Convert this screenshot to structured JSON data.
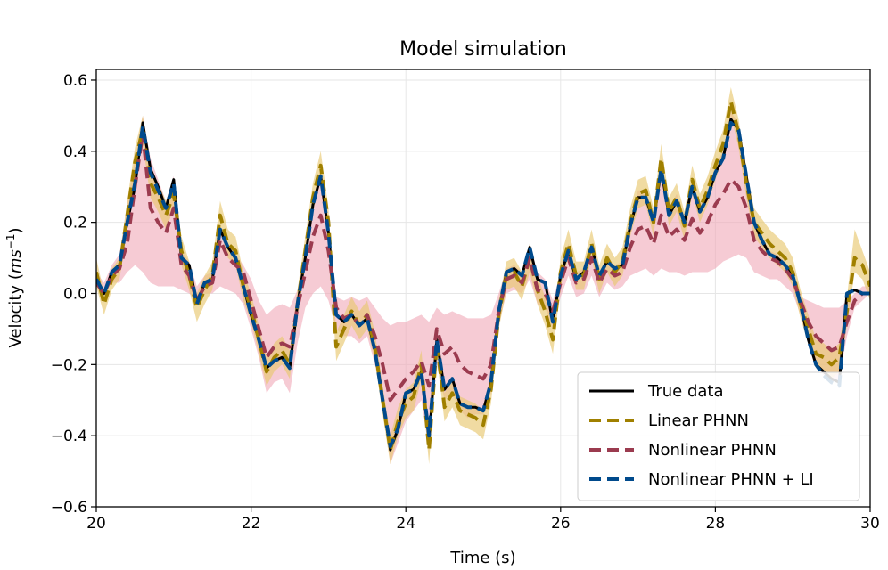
{
  "chart_data": {
    "type": "line",
    "title": "Model simulation",
    "xlabel": "Time (s)",
    "ylabel": "Velocity (ms⁻¹)",
    "ylabel_parts": {
      "prefix": "Velocity (",
      "unit": "ms",
      "sup": "−1",
      "suffix": ")"
    },
    "xlim": [
      20,
      30
    ],
    "ylim": [
      -0.6,
      0.63
    ],
    "grid": true,
    "legend_position": "lower-right",
    "x_ticks": [
      20,
      22,
      24,
      26,
      28,
      30
    ],
    "x_tick_labels": [
      "20",
      "22",
      "24",
      "26",
      "28",
      "30"
    ],
    "y_ticks": [
      -0.6,
      -0.4,
      -0.2,
      0.0,
      0.2,
      0.4,
      0.6
    ],
    "y_tick_labels": [
      "−0.6",
      "−0.4",
      "−0.2",
      "0.0",
      "0.2",
      "0.4",
      "0.6"
    ],
    "x": [
      20.0,
      20.1,
      20.2,
      20.3,
      20.4,
      20.5,
      20.6,
      20.7,
      20.8,
      20.9,
      21.0,
      21.1,
      21.2,
      21.3,
      21.4,
      21.5,
      21.6,
      21.7,
      21.8,
      21.9,
      22.0,
      22.1,
      22.2,
      22.3,
      22.4,
      22.5,
      22.6,
      22.7,
      22.8,
      22.9,
      23.0,
      23.1,
      23.2,
      23.3,
      23.4,
      23.5,
      23.6,
      23.7,
      23.8,
      23.9,
      24.0,
      24.1,
      24.2,
      24.3,
      24.4,
      24.5,
      24.6,
      24.7,
      24.8,
      24.9,
      25.0,
      25.1,
      25.2,
      25.3,
      25.4,
      25.5,
      25.6,
      25.7,
      25.8,
      25.9,
      26.0,
      26.1,
      26.2,
      26.3,
      26.4,
      26.5,
      26.6,
      26.7,
      26.8,
      26.9,
      27.0,
      27.1,
      27.2,
      27.3,
      27.4,
      27.5,
      27.6,
      27.7,
      27.8,
      27.9,
      28.0,
      28.1,
      28.2,
      28.3,
      28.4,
      28.5,
      28.6,
      28.7,
      28.8,
      28.9,
      29.0,
      29.1,
      29.2,
      29.3,
      29.4,
      29.5,
      29.6,
      29.7,
      29.8,
      29.9,
      30.0
    ],
    "series": [
      {
        "name": "True data",
        "color": "#000000",
        "dash": "solid",
        "values": [
          0.04,
          0.0,
          0.06,
          0.08,
          0.2,
          0.3,
          0.48,
          0.35,
          0.3,
          0.24,
          0.32,
          0.1,
          0.08,
          -0.03,
          0.03,
          0.04,
          0.18,
          0.13,
          0.1,
          0.02,
          -0.06,
          -0.13,
          -0.21,
          -0.19,
          -0.18,
          -0.21,
          -0.03,
          0.1,
          0.25,
          0.33,
          0.17,
          -0.06,
          -0.08,
          -0.06,
          -0.09,
          -0.07,
          -0.16,
          -0.3,
          -0.44,
          -0.38,
          -0.28,
          -0.27,
          -0.22,
          -0.41,
          -0.13,
          -0.27,
          -0.24,
          -0.31,
          -0.32,
          -0.32,
          -0.33,
          -0.25,
          -0.05,
          0.06,
          0.07,
          0.05,
          0.13,
          0.04,
          0.03,
          -0.08,
          0.05,
          0.12,
          0.04,
          0.06,
          0.13,
          0.05,
          0.09,
          0.07,
          0.08,
          0.19,
          0.27,
          0.27,
          0.2,
          0.35,
          0.22,
          0.26,
          0.2,
          0.3,
          0.23,
          0.27,
          0.34,
          0.38,
          0.49,
          0.46,
          0.33,
          0.2,
          0.15,
          0.11,
          0.1,
          0.08,
          0.05,
          -0.03,
          -0.13,
          -0.2,
          -0.22,
          -0.24,
          -0.25,
          0.0,
          0.01,
          0.0,
          0.0
        ]
      },
      {
        "name": "Linear PHNN",
        "color": "#a08000",
        "dash": "dashed",
        "values": [
          0.06,
          -0.03,
          0.04,
          0.07,
          0.22,
          0.37,
          0.46,
          0.31,
          0.27,
          0.22,
          0.28,
          0.12,
          0.05,
          -0.04,
          0.01,
          0.05,
          0.22,
          0.14,
          0.12,
          0.02,
          -0.04,
          -0.13,
          -0.22,
          -0.18,
          -0.16,
          -0.2,
          -0.03,
          0.12,
          0.27,
          0.36,
          0.2,
          -0.15,
          -0.1,
          -0.05,
          -0.09,
          -0.06,
          -0.15,
          -0.3,
          -0.44,
          -0.36,
          -0.31,
          -0.29,
          -0.2,
          -0.44,
          -0.14,
          -0.32,
          -0.28,
          -0.33,
          -0.34,
          -0.35,
          -0.37,
          -0.27,
          -0.06,
          0.05,
          0.06,
          0.02,
          0.1,
          0.01,
          -0.05,
          -0.13,
          0.06,
          0.14,
          0.05,
          0.05,
          0.14,
          0.04,
          0.1,
          0.06,
          0.09,
          0.2,
          0.28,
          0.29,
          0.2,
          0.38,
          0.23,
          0.27,
          0.19,
          0.32,
          0.24,
          0.29,
          0.36,
          0.42,
          0.54,
          0.45,
          0.31,
          0.2,
          0.17,
          0.14,
          0.12,
          0.1,
          0.06,
          -0.03,
          -0.1,
          -0.17,
          -0.18,
          -0.2,
          -0.18,
          -0.05,
          0.1,
          0.08,
          0.02
        ]
      },
      {
        "name": "Nonlinear PHNN",
        "color": "#9b3b4f",
        "dash": "dashed",
        "values": [
          0.03,
          0.0,
          0.05,
          0.07,
          0.14,
          0.3,
          0.45,
          0.24,
          0.2,
          0.17,
          0.24,
          0.08,
          0.05,
          -0.02,
          0.02,
          0.03,
          0.15,
          0.1,
          0.08,
          0.06,
          -0.02,
          -0.1,
          -0.18,
          -0.15,
          -0.14,
          -0.15,
          -0.04,
          0.06,
          0.16,
          0.22,
          0.12,
          -0.04,
          -0.07,
          -0.06,
          -0.09,
          -0.06,
          -0.12,
          -0.2,
          -0.3,
          -0.27,
          -0.24,
          -0.22,
          -0.19,
          -0.26,
          -0.1,
          -0.17,
          -0.15,
          -0.2,
          -0.22,
          -0.23,
          -0.24,
          -0.2,
          -0.05,
          0.04,
          0.05,
          0.03,
          0.1,
          0.01,
          0.0,
          -0.05,
          0.03,
          0.1,
          0.03,
          0.04,
          0.1,
          0.03,
          0.07,
          0.05,
          0.06,
          0.13,
          0.18,
          0.19,
          0.14,
          0.22,
          0.16,
          0.18,
          0.15,
          0.21,
          0.17,
          0.2,
          0.25,
          0.28,
          0.32,
          0.3,
          0.24,
          0.15,
          0.12,
          0.1,
          0.09,
          0.07,
          0.04,
          -0.02,
          -0.08,
          -0.12,
          -0.14,
          -0.16,
          -0.15,
          -0.08,
          -0.02,
          0.0,
          0.0
        ]
      },
      {
        "name": "Nonlinear PHNN + LI",
        "color": "#004a8c",
        "dash": "dashed",
        "values": [
          0.04,
          0.0,
          0.06,
          0.08,
          0.2,
          0.31,
          0.47,
          0.34,
          0.29,
          0.24,
          0.31,
          0.1,
          0.08,
          -0.03,
          0.03,
          0.04,
          0.18,
          0.13,
          0.1,
          0.02,
          -0.06,
          -0.13,
          -0.21,
          -0.19,
          -0.18,
          -0.21,
          -0.03,
          0.1,
          0.25,
          0.33,
          0.17,
          -0.06,
          -0.08,
          -0.06,
          -0.09,
          -0.07,
          -0.16,
          -0.3,
          -0.43,
          -0.38,
          -0.28,
          -0.27,
          -0.22,
          -0.4,
          -0.13,
          -0.27,
          -0.24,
          -0.31,
          -0.32,
          -0.32,
          -0.33,
          -0.25,
          -0.05,
          0.06,
          0.07,
          0.05,
          0.13,
          0.04,
          0.03,
          -0.08,
          0.05,
          0.12,
          0.04,
          0.06,
          0.13,
          0.05,
          0.09,
          0.07,
          0.08,
          0.19,
          0.27,
          0.27,
          0.2,
          0.35,
          0.22,
          0.26,
          0.2,
          0.3,
          0.23,
          0.27,
          0.34,
          0.38,
          0.48,
          0.46,
          0.33,
          0.2,
          0.15,
          0.11,
          0.1,
          0.08,
          0.05,
          -0.03,
          -0.13,
          -0.2,
          -0.23,
          -0.25,
          -0.26,
          0.0,
          0.01,
          0.0,
          0.0
        ]
      }
    ],
    "bands": [
      {
        "series": "Linear PHNN",
        "color": "#e8c770",
        "opacity": 0.65,
        "lower": [
          0.02,
          -0.06,
          0.01,
          0.04,
          0.18,
          0.33,
          0.42,
          0.27,
          0.23,
          0.18,
          0.24,
          0.08,
          0.01,
          -0.08,
          -0.03,
          0.01,
          0.18,
          0.1,
          0.08,
          -0.02,
          -0.08,
          -0.17,
          -0.26,
          -0.22,
          -0.2,
          -0.24,
          -0.07,
          0.08,
          0.23,
          0.32,
          0.16,
          -0.19,
          -0.14,
          -0.09,
          -0.13,
          -0.1,
          -0.19,
          -0.34,
          -0.48,
          -0.4,
          -0.35,
          -0.33,
          -0.24,
          -0.48,
          -0.18,
          -0.36,
          -0.32,
          -0.37,
          -0.38,
          -0.39,
          -0.41,
          -0.31,
          -0.1,
          0.01,
          0.02,
          -0.02,
          0.06,
          -0.03,
          -0.09,
          -0.17,
          0.02,
          0.1,
          0.01,
          0.01,
          0.1,
          0.0,
          0.06,
          0.02,
          0.05,
          0.16,
          0.24,
          0.25,
          0.16,
          0.34,
          0.19,
          0.23,
          0.15,
          0.28,
          0.2,
          0.25,
          0.32,
          0.38,
          0.5,
          0.41,
          0.27,
          0.16,
          0.13,
          0.1,
          0.08,
          0.06,
          0.02,
          -0.07,
          -0.14,
          -0.21,
          -0.22,
          -0.24,
          -0.22,
          -0.09,
          0.06,
          0.04,
          -0.02
        ],
        "upper": [
          0.1,
          0.0,
          0.07,
          0.1,
          0.26,
          0.41,
          0.5,
          0.35,
          0.31,
          0.26,
          0.32,
          0.16,
          0.09,
          0.0,
          0.05,
          0.09,
          0.26,
          0.18,
          0.16,
          0.06,
          0.0,
          -0.09,
          -0.18,
          -0.14,
          -0.12,
          -0.16,
          0.01,
          0.16,
          0.31,
          0.4,
          0.24,
          -0.11,
          -0.06,
          -0.01,
          -0.05,
          -0.02,
          -0.11,
          -0.26,
          -0.4,
          -0.32,
          -0.27,
          -0.25,
          -0.16,
          -0.4,
          -0.1,
          -0.28,
          -0.24,
          -0.29,
          -0.3,
          -0.31,
          -0.33,
          -0.23,
          -0.02,
          0.09,
          0.1,
          0.06,
          0.14,
          0.05,
          -0.01,
          -0.09,
          0.1,
          0.18,
          0.09,
          0.09,
          0.18,
          0.08,
          0.14,
          0.1,
          0.13,
          0.24,
          0.32,
          0.33,
          0.24,
          0.42,
          0.27,
          0.31,
          0.23,
          0.36,
          0.28,
          0.33,
          0.4,
          0.46,
          0.58,
          0.49,
          0.35,
          0.24,
          0.21,
          0.18,
          0.16,
          0.14,
          0.1,
          0.01,
          -0.06,
          -0.13,
          -0.14,
          -0.16,
          -0.14,
          -0.01,
          0.18,
          0.12,
          0.06
        ]
      },
      {
        "series": "Nonlinear PHNN",
        "color": "#f0a8b8",
        "opacity": 0.6,
        "lower": [
          0.02,
          0.0,
          0.03,
          0.03,
          0.06,
          0.08,
          0.06,
          0.03,
          0.02,
          0.02,
          0.02,
          0.01,
          0.0,
          -0.02,
          0.0,
          0.0,
          0.02,
          0.01,
          0.0,
          -0.03,
          -0.1,
          -0.18,
          -0.28,
          -0.25,
          -0.24,
          -0.28,
          -0.14,
          -0.04,
          0.0,
          0.02,
          -0.02,
          -0.1,
          -0.12,
          -0.12,
          -0.14,
          -0.12,
          -0.2,
          -0.3,
          -0.48,
          -0.42,
          -0.36,
          -0.33,
          -0.3,
          -0.44,
          -0.2,
          -0.3,
          -0.28,
          -0.33,
          -0.35,
          -0.34,
          -0.34,
          -0.28,
          -0.09,
          0.0,
          0.01,
          0.0,
          0.04,
          -0.03,
          -0.04,
          -0.1,
          -0.01,
          0.05,
          -0.01,
          0.0,
          0.05,
          -0.01,
          0.03,
          0.01,
          0.02,
          0.05,
          0.06,
          0.07,
          0.05,
          0.07,
          0.06,
          0.06,
          0.05,
          0.06,
          0.06,
          0.06,
          0.07,
          0.09,
          0.1,
          0.11,
          0.1,
          0.06,
          0.05,
          0.04,
          0.04,
          0.02,
          0.0,
          -0.06,
          -0.14,
          -0.2,
          -0.23,
          -0.25,
          -0.24,
          -0.12,
          -0.04,
          -0.02,
          0.0
        ],
        "upper": [
          0.06,
          0.03,
          0.08,
          0.11,
          0.25,
          0.38,
          0.5,
          0.38,
          0.32,
          0.26,
          0.33,
          0.12,
          0.09,
          0.02,
          0.05,
          0.06,
          0.19,
          0.14,
          0.11,
          0.08,
          0.04,
          -0.02,
          -0.06,
          -0.04,
          -0.03,
          -0.04,
          0.01,
          0.13,
          0.27,
          0.35,
          0.2,
          -0.01,
          -0.02,
          -0.01,
          -0.02,
          -0.01,
          -0.04,
          -0.07,
          -0.09,
          -0.08,
          -0.08,
          -0.07,
          -0.06,
          -0.08,
          -0.04,
          -0.06,
          -0.05,
          -0.06,
          -0.07,
          -0.07,
          -0.07,
          -0.06,
          0.0,
          0.07,
          0.08,
          0.06,
          0.14,
          0.06,
          0.04,
          -0.02,
          0.06,
          0.14,
          0.06,
          0.07,
          0.14,
          0.06,
          0.1,
          0.08,
          0.09,
          0.2,
          0.29,
          0.29,
          0.22,
          0.37,
          0.24,
          0.28,
          0.22,
          0.32,
          0.25,
          0.29,
          0.36,
          0.4,
          0.51,
          0.48,
          0.35,
          0.22,
          0.16,
          0.12,
          0.11,
          0.09,
          0.06,
          -0.01,
          -0.02,
          -0.03,
          -0.04,
          -0.04,
          -0.04,
          -0.02,
          0.0,
          0.02,
          0.02
        ]
      }
    ]
  }
}
